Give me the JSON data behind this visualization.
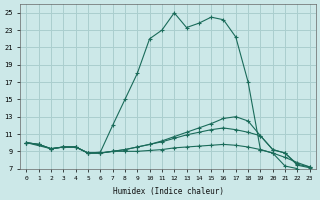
{
  "bg_color": "#cce8e8",
  "grid_color": "#aacece",
  "line_color": "#1a6b5a",
  "xlabel": "Humidex (Indice chaleur)",
  "xlim": [
    -0.5,
    23.5
  ],
  "ylim": [
    7,
    26
  ],
  "yticks": [
    7,
    9,
    11,
    13,
    15,
    17,
    19,
    21,
    23,
    25
  ],
  "xticks": [
    0,
    1,
    2,
    3,
    4,
    5,
    6,
    7,
    8,
    9,
    10,
    11,
    12,
    13,
    14,
    15,
    16,
    17,
    18,
    19,
    20,
    21,
    22,
    23
  ],
  "line1_x": [
    0,
    1,
    2,
    3,
    4,
    5,
    6,
    7,
    8,
    9,
    10,
    11,
    12,
    13,
    14,
    15,
    16,
    17,
    18,
    19,
    20,
    21,
    22,
    23
  ],
  "line1_y": [
    10.0,
    9.8,
    9.3,
    9.5,
    9.5,
    8.8,
    8.9,
    12.0,
    15.0,
    18.0,
    22.0,
    23.0,
    25.0,
    23.3,
    23.8,
    24.5,
    24.2,
    22.2,
    17.0,
    9.2,
    8.8,
    7.3,
    7.0,
    null
  ],
  "line2_x": [
    0,
    1,
    2,
    3,
    4,
    5,
    6,
    7,
    8,
    9,
    10,
    11,
    12,
    13,
    14,
    15,
    16,
    17,
    18,
    19,
    20,
    21,
    22,
    23
  ],
  "line2_y": [
    10.0,
    9.8,
    9.3,
    9.5,
    9.5,
    8.8,
    8.8,
    9.0,
    9.2,
    9.5,
    9.8,
    10.2,
    10.7,
    11.2,
    11.7,
    12.2,
    12.8,
    13.0,
    12.5,
    10.8,
    9.2,
    8.8,
    7.5,
    7.2
  ],
  "line3_x": [
    0,
    1,
    2,
    3,
    4,
    5,
    6,
    7,
    8,
    9,
    10,
    11,
    12,
    13,
    14,
    15,
    16,
    17,
    18,
    19,
    20,
    21,
    22,
    23
  ],
  "line3_y": [
    10.0,
    9.8,
    9.3,
    9.5,
    9.5,
    8.8,
    8.8,
    9.0,
    9.2,
    9.5,
    9.8,
    10.1,
    10.5,
    10.9,
    11.2,
    11.5,
    11.7,
    11.5,
    11.2,
    10.8,
    9.2,
    8.8,
    7.4,
    7.1
  ],
  "line4_x": [
    0,
    2,
    3,
    4,
    5,
    6,
    7,
    8,
    9,
    10,
    11,
    12,
    13,
    14,
    15,
    16,
    17,
    18,
    19,
    20,
    21,
    22,
    23
  ],
  "line4_y": [
    10.0,
    9.3,
    9.5,
    9.5,
    8.8,
    8.8,
    9.0,
    9.0,
    9.0,
    9.1,
    9.2,
    9.4,
    9.5,
    9.6,
    9.7,
    9.8,
    9.7,
    9.5,
    9.2,
    8.8,
    8.3,
    7.7,
    7.2
  ]
}
